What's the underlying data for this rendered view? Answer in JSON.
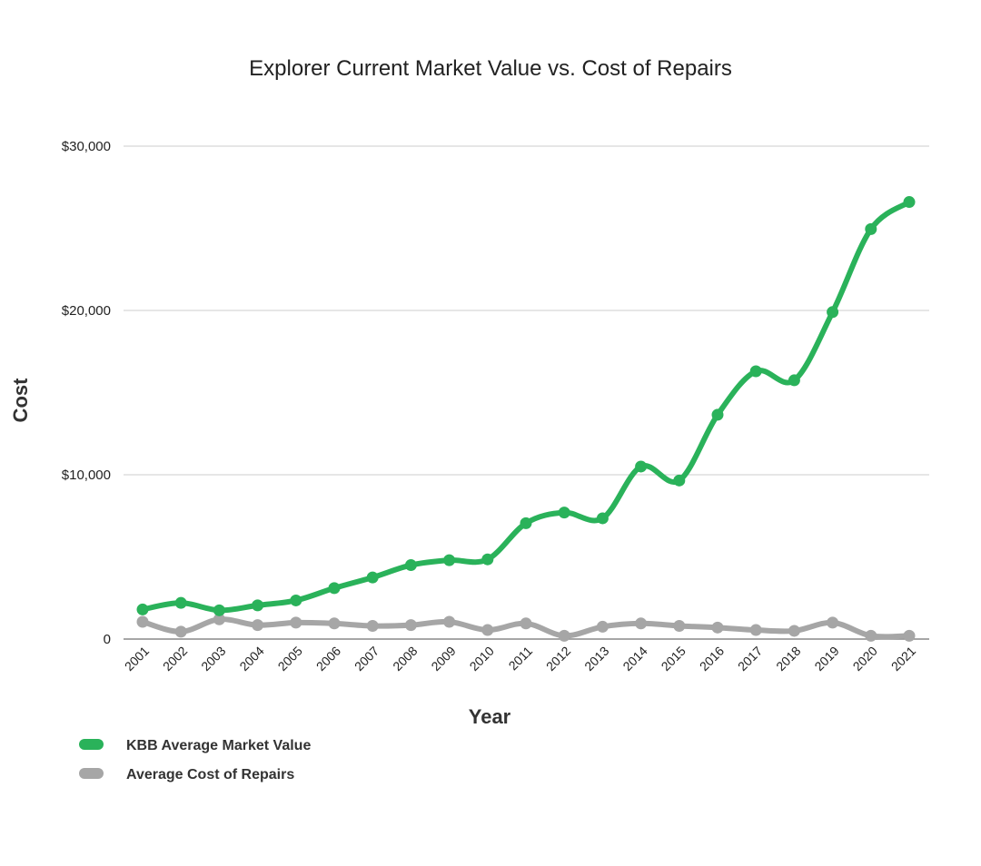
{
  "chart_data": {
    "type": "line",
    "title": "Explorer Current Market Value vs. Cost of Repairs",
    "xlabel": "Year",
    "ylabel": "Cost",
    "categories": [
      "2001",
      "2002",
      "2003",
      "2004",
      "2005",
      "2006",
      "2007",
      "2008",
      "2009",
      "2010",
      "2011",
      "2012",
      "2013",
      "2014",
      "2015",
      "2016",
      "2017",
      "2018",
      "2019",
      "2020",
      "2021"
    ],
    "ylim": [
      0,
      30000
    ],
    "yticks": [
      {
        "value": 0,
        "label": "0"
      },
      {
        "value": 10000,
        "label": "$10,000"
      },
      {
        "value": 20000,
        "label": "$20,000"
      },
      {
        "value": 30000,
        "label": "$30,000"
      }
    ],
    "grid": true,
    "legend_position": "bottom-left",
    "series": [
      {
        "name": "KBB Average Market Value",
        "color": "#2ab25a",
        "values": [
          1800,
          2200,
          1750,
          2050,
          2350,
          3100,
          3750,
          4500,
          4800,
          4850,
          7050,
          7700,
          7350,
          10500,
          9650,
          13650,
          16300,
          15750,
          19900,
          24950,
          26600
        ]
      },
      {
        "name": "Average Cost of Repairs",
        "color": "#a6a6a6",
        "values": [
          1050,
          450,
          1200,
          850,
          1000,
          950,
          800,
          850,
          1050,
          550,
          950,
          200,
          750,
          950,
          800,
          700,
          550,
          500,
          1000,
          200,
          200
        ]
      }
    ]
  }
}
